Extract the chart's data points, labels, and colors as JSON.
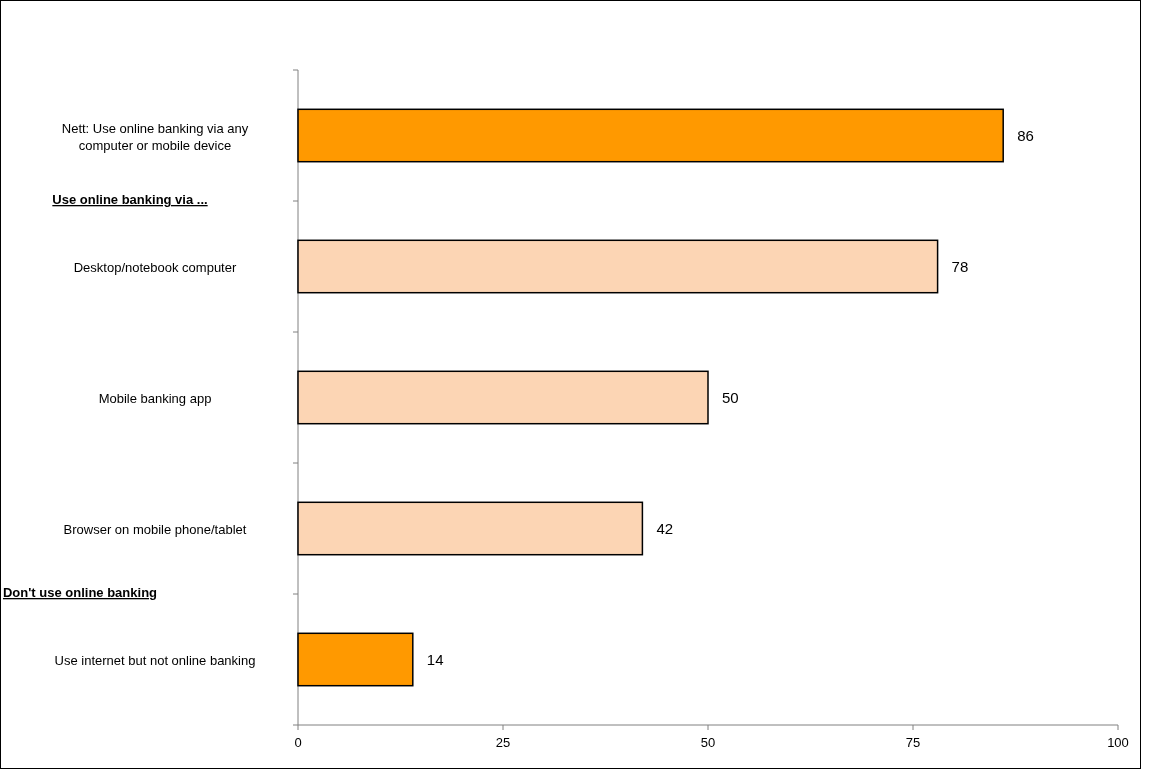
{
  "chart_data": {
    "type": "bar",
    "orientation": "horizontal",
    "categories": [
      "Nett: Use online banking via any computer or mobile device",
      "Desktop/notebook computer",
      "Mobile banking app",
      "Browser on mobile phone/tablet",
      "Use internet but not online banking"
    ],
    "values": [
      86,
      78,
      50,
      42,
      14
    ],
    "colors": [
      "#ff9900",
      "#fcd5b4",
      "#fcd5b4",
      "#fcd5b4",
      "#ff9900"
    ],
    "xlim": [
      0,
      100
    ],
    "xticks": [
      0,
      25,
      50,
      75,
      100
    ],
    "grid": false,
    "data_labels": true,
    "annotations": [
      "Use online banking via ...",
      "Don't use online banking"
    ]
  }
}
